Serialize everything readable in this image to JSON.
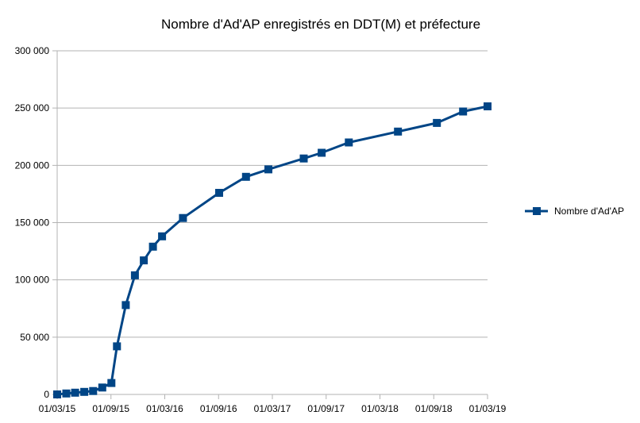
{
  "chart_data": {
    "type": "line",
    "title": "Nombre d'Ad'AP enregistrés en DDT(M) et préfecture",
    "xlabel": "",
    "ylabel": "",
    "x_ticks": [
      "01/03/15",
      "01/09/15",
      "01/03/16",
      "01/09/16",
      "01/03/17",
      "01/09/17",
      "01/03/18",
      "01/09/18",
      "01/03/19"
    ],
    "y_ticks": [
      "0",
      "50 000",
      "100 000",
      "150 000",
      "200 000",
      "250 000",
      "300 000"
    ],
    "ylim": [
      0,
      300000
    ],
    "xlim": [
      "2015-03-01",
      "2019-03-01"
    ],
    "grid": "horizontal",
    "legend_position": "right",
    "colors": {
      "series": "#004586",
      "grid": "#b3b3b3"
    },
    "series": [
      {
        "name": "Nombre d'Ad'AP",
        "x": [
          "2015-03-01",
          "2015-04-01",
          "2015-05-01",
          "2015-06-01",
          "2015-07-01",
          "2015-08-01",
          "2015-09-01",
          "2015-09-20",
          "2015-10-20",
          "2015-11-20",
          "2015-12-20",
          "2016-01-20",
          "2016-02-20",
          "2016-05-01",
          "2016-09-01",
          "2016-12-01",
          "2017-02-15",
          "2017-06-15",
          "2017-08-15",
          "2017-11-15",
          "2018-05-01",
          "2018-09-10",
          "2018-12-08",
          "2019-03-01"
        ],
        "values": [
          0,
          800,
          1500,
          2200,
          3000,
          6000,
          10000,
          42000,
          78000,
          104000,
          117000,
          129000,
          138000,
          154000,
          176000,
          190000,
          196500,
          206000,
          211000,
          220000,
          229500,
          237000,
          247000,
          251500
        ]
      }
    ]
  }
}
